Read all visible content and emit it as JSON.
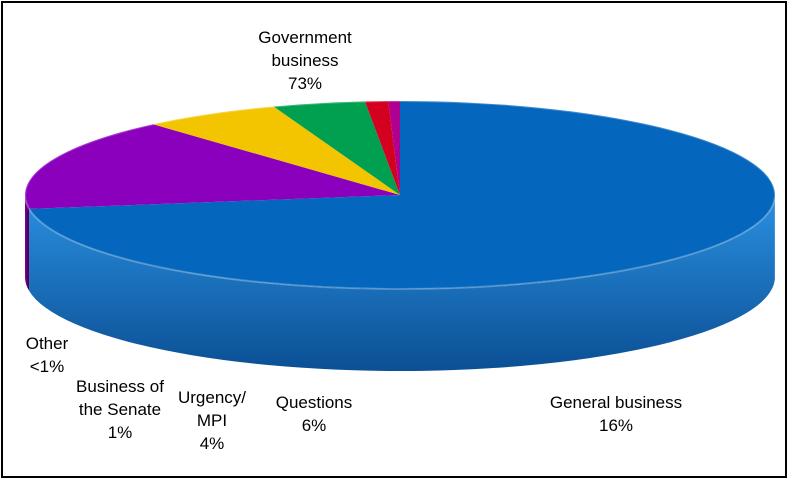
{
  "chart_data": {
    "type": "pie",
    "style": "3d-tilted",
    "slices": [
      {
        "name_lines": [
          "Government",
          "business"
        ],
        "percent_label": "73%",
        "value": 73,
        "color": "#0066BB"
      },
      {
        "name_lines": [
          "General business"
        ],
        "percent_label": "16%",
        "value": 16,
        "color": "#8B00BD"
      },
      {
        "name_lines": [
          "Questions"
        ],
        "percent_label": "6%",
        "value": 6,
        "color": "#F2C500"
      },
      {
        "name_lines": [
          "Urgency/",
          "MPI"
        ],
        "percent_label": "4%",
        "value": 4,
        "color": "#00A050"
      },
      {
        "name_lines": [
          "Business of",
          "the Senate"
        ],
        "percent_label": "1%",
        "value": 1,
        "color": "#D40020"
      },
      {
        "name_lines": [
          "Other"
        ],
        "percent_label": "<1%",
        "value": 0.5,
        "color": "#B0008F"
      }
    ],
    "legend": "none",
    "labels": "outside"
  }
}
